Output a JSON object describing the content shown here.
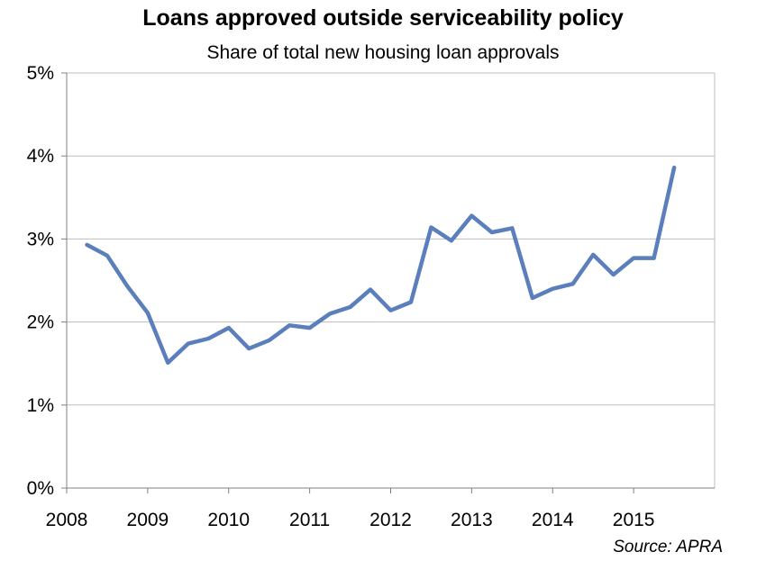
{
  "chart_data": {
    "type": "line",
    "title": "Loans approved outside serviceability policy",
    "subtitle": "Share of total new housing loan approvals",
    "source": "Source: APRA",
    "xlabel": "",
    "ylabel": "",
    "x_ticks": [
      "2008",
      "2009",
      "2010",
      "2011",
      "2012",
      "2013",
      "2014",
      "2015"
    ],
    "y_ticks": [
      "0%",
      "1%",
      "2%",
      "3%",
      "4%",
      "5%"
    ],
    "xlim": [
      2008,
      2016
    ],
    "ylim": [
      0,
      5
    ],
    "grid": true,
    "series": [
      {
        "color": "#5b7fbc",
        "x": [
          2008.25,
          2008.5,
          2008.75,
          2009.0,
          2009.25,
          2009.5,
          2009.75,
          2010.0,
          2010.25,
          2010.5,
          2010.75,
          2011.0,
          2011.25,
          2011.5,
          2011.75,
          2012.0,
          2012.25,
          2012.5,
          2012.75,
          2013.0,
          2013.25,
          2013.5,
          2013.75,
          2014.0,
          2014.25,
          2014.5,
          2014.75,
          2015.0,
          2015.25,
          2015.5
        ],
        "y": [
          2.93,
          2.8,
          2.43,
          2.11,
          1.51,
          1.74,
          1.8,
          1.93,
          1.68,
          1.78,
          1.96,
          1.93,
          2.1,
          2.18,
          2.39,
          2.14,
          2.24,
          3.14,
          2.98,
          3.28,
          3.08,
          3.13,
          2.29,
          2.4,
          2.46,
          2.81,
          2.57,
          2.77,
          2.77,
          3.86
        ]
      }
    ]
  }
}
